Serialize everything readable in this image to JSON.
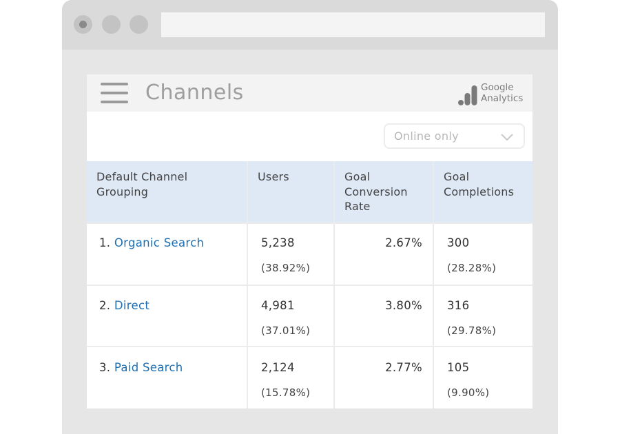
{
  "card": {
    "title": "Channels",
    "brand_line1": "Google",
    "brand_line2": "Analytics"
  },
  "filter": {
    "selected": "Online only"
  },
  "table": {
    "headers": {
      "channel": [
        "Default Channel",
        "Grouping"
      ],
      "users": "Users",
      "conversion_rate": [
        "Goal",
        "Conversion",
        "Rate"
      ],
      "completions": [
        "Goal",
        "Completions"
      ]
    },
    "rows": [
      {
        "rank": "1.",
        "channel": "Organic Search",
        "users": "5,238",
        "users_pct": "(38.92%)",
        "conversion_rate": "2.67%",
        "completions": "300",
        "completions_pct": "(28.28%)"
      },
      {
        "rank": "2.",
        "channel": "Direct",
        "users": "4,981",
        "users_pct": "(37.01%)",
        "conversion_rate": "3.80%",
        "completions": "316",
        "completions_pct": "(29.78%)"
      },
      {
        "rank": "3.",
        "channel": "Paid Search",
        "users": "2,124",
        "users_pct": "(15.78%)",
        "conversion_rate": "2.77%",
        "completions": "105",
        "completions_pct": "(9.90%)"
      }
    ]
  },
  "icons": {
    "menu": "hamburger-menu-icon",
    "logo": "google-analytics-logo-icon",
    "dropdown": "chevron-down-icon"
  },
  "colors": {
    "link": "#1f6fb2",
    "header_bg": "#dfe9f6"
  }
}
